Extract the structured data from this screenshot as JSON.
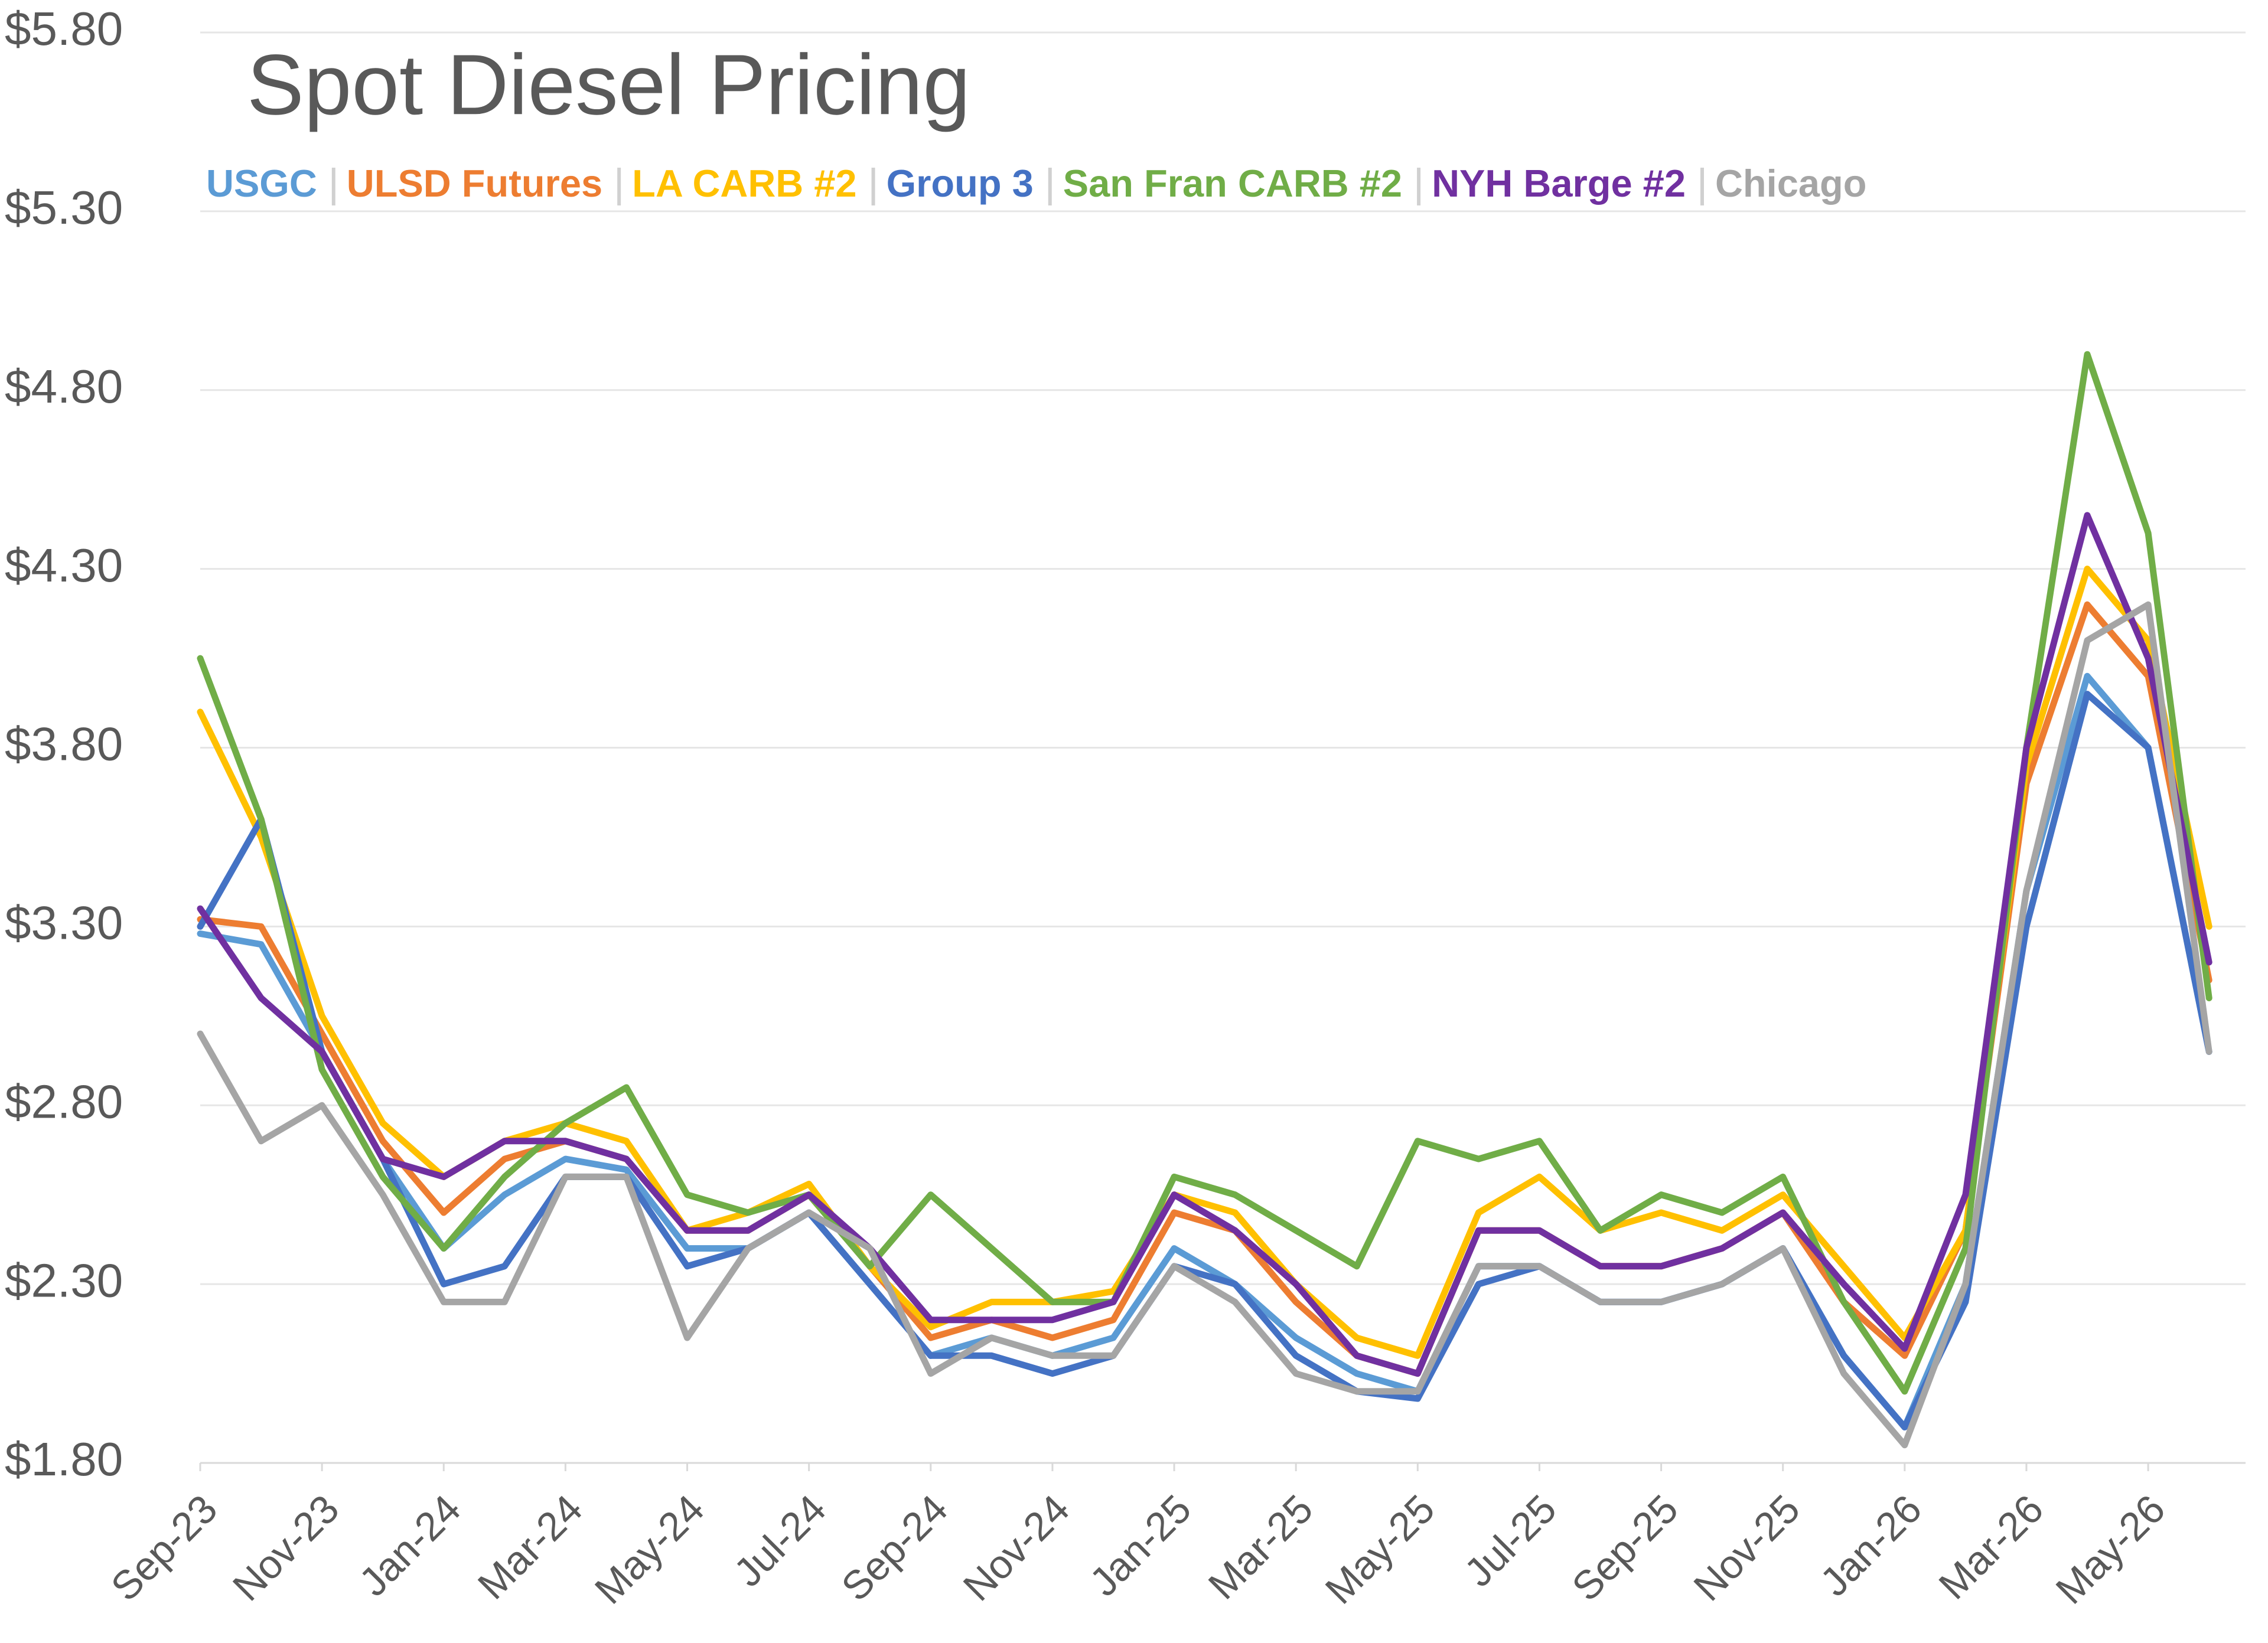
{
  "chart_data": {
    "type": "line",
    "title": "Spot Diesel Pricing",
    "categories": [
      "Sep-23",
      null,
      "Nov-23",
      null,
      "Jan-24",
      null,
      "Mar-24",
      null,
      "May-24",
      null,
      "Jul-24",
      null,
      "Sep-24",
      null,
      "Nov-24",
      null,
      "Jan-25",
      null,
      "Mar-25",
      null,
      "May-25",
      null,
      "Jul-25",
      null,
      "Sep-25",
      null,
      "Nov-25",
      null,
      "Jan-26",
      null,
      "Mar-26",
      null,
      "May-26",
      null
    ],
    "series": [
      {
        "name": "USGC",
        "color": "#5b9bd5",
        "values": [
          3.28,
          3.25,
          2.95,
          2.65,
          2.4,
          2.55,
          2.65,
          2.62,
          2.4,
          2.4,
          2.5,
          2.3,
          2.1,
          2.15,
          2.1,
          2.15,
          2.4,
          2.3,
          2.15,
          2.05,
          2.0,
          2.35,
          2.35,
          2.25,
          2.25,
          2.3,
          2.4,
          2.1,
          1.9,
          2.3,
          3.4,
          4.0,
          3.8,
          2.95
        ]
      },
      {
        "name": "ULSD Futures",
        "color": "#ed7d31",
        "values": [
          3.32,
          3.3,
          3.0,
          2.7,
          2.5,
          2.65,
          2.7,
          2.65,
          2.45,
          2.45,
          2.55,
          2.35,
          2.15,
          2.2,
          2.15,
          2.2,
          2.5,
          2.45,
          2.25,
          2.1,
          2.05,
          2.45,
          2.45,
          2.35,
          2.35,
          2.4,
          2.5,
          2.25,
          2.1,
          2.45,
          3.7,
          4.2,
          4.0,
          3.15
        ]
      },
      {
        "name": "LA CARB #2",
        "color": "#ffc000",
        "values": [
          3.9,
          3.55,
          3.05,
          2.75,
          2.6,
          2.7,
          2.75,
          2.7,
          2.45,
          2.5,
          2.58,
          2.35,
          2.18,
          2.25,
          2.25,
          2.28,
          2.55,
          2.5,
          2.3,
          2.15,
          2.1,
          2.5,
          2.6,
          2.45,
          2.5,
          2.45,
          2.55,
          2.35,
          2.15,
          2.45,
          3.75,
          4.3,
          4.1,
          3.3
        ]
      },
      {
        "name": "Group 3",
        "color": "#4472c4",
        "values": [
          3.3,
          3.6,
          2.95,
          2.65,
          2.3,
          2.35,
          2.6,
          2.6,
          2.35,
          2.4,
          2.5,
          2.3,
          2.1,
          2.1,
          2.05,
          2.1,
          2.35,
          2.3,
          2.1,
          2.0,
          1.98,
          2.3,
          2.35,
          2.25,
          2.25,
          2.3,
          2.4,
          2.1,
          1.9,
          2.25,
          3.3,
          3.95,
          3.8,
          2.95
        ]
      },
      {
        "name": "San Fran CARB #2",
        "color": "#70ad47",
        "values": [
          4.05,
          3.6,
          2.9,
          2.6,
          2.4,
          2.6,
          2.75,
          2.85,
          2.55,
          2.5,
          2.55,
          2.35,
          2.55,
          2.4,
          2.25,
          2.25,
          2.6,
          2.55,
          2.45,
          2.35,
          2.7,
          2.65,
          2.7,
          2.45,
          2.55,
          2.5,
          2.6,
          2.25,
          2.0,
          2.4,
          3.8,
          4.9,
          4.4,
          3.1
        ]
      },
      {
        "name": "NYH Barge #2",
        "color": "#7030a0",
        "values": [
          3.35,
          3.1,
          2.95,
          2.65,
          2.6,
          2.7,
          2.7,
          2.65,
          2.45,
          2.45,
          2.55,
          2.4,
          2.2,
          2.2,
          2.2,
          2.25,
          2.55,
          2.45,
          2.3,
          2.1,
          2.05,
          2.45,
          2.45,
          2.35,
          2.35,
          2.4,
          2.5,
          2.3,
          2.12,
          2.55,
          3.8,
          4.45,
          4.05,
          3.2
        ]
      },
      {
        "name": "Chicago",
        "color": "#a5a5a5",
        "values": [
          3.0,
          2.7,
          2.8,
          2.55,
          2.25,
          2.25,
          2.6,
          2.6,
          2.15,
          2.4,
          2.5,
          2.4,
          2.05,
          2.15,
          2.1,
          2.1,
          2.35,
          2.25,
          2.05,
          2.0,
          2.0,
          2.35,
          2.35,
          2.25,
          2.25,
          2.3,
          2.4,
          2.05,
          1.85,
          2.3,
          3.4,
          4.1,
          4.2,
          2.95
        ]
      }
    ],
    "ylim": [
      1.8,
      5.8
    ],
    "yticks": [
      {
        "value": 1.8,
        "label": "$1.80"
      },
      {
        "value": 2.3,
        "label": "$2.30"
      },
      {
        "value": 2.8,
        "label": "$2.80"
      },
      {
        "value": 3.3,
        "label": "$3.30"
      },
      {
        "value": 3.8,
        "label": "$3.80"
      },
      {
        "value": 4.3,
        "label": "$4.30"
      },
      {
        "value": 4.8,
        "label": "$4.80"
      },
      {
        "value": 5.3,
        "label": "$5.30"
      },
      {
        "value": 5.8,
        "label": "$5.80"
      }
    ],
    "grid": true
  }
}
